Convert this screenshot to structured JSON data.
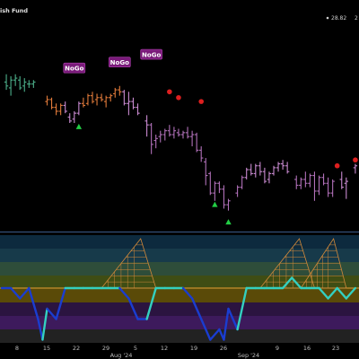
{
  "header": {
    "title": "ish Fund",
    "last_label": "28.82",
    "ellipsis": "2"
  },
  "chart_data": {
    "type": "candlestick",
    "x_tick_labels": [
      "8",
      "15",
      "22",
      "29",
      "5",
      "12",
      "19",
      "26",
      "9",
      "16",
      "23"
    ],
    "month_labels": [
      "Aug '24",
      "Sep '24"
    ],
    "upper_panel": {
      "bars": [
        {
          "d": 1,
          "o": 74,
          "h": 78,
          "l": 70,
          "c": 72,
          "color": "#4caf8a"
        },
        {
          "d": 2,
          "o": 71,
          "h": 77,
          "l": 67,
          "c": 75,
          "color": "#4caf8a"
        },
        {
          "d": 3,
          "o": 75,
          "h": 78,
          "l": 72,
          "c": 76,
          "color": "#4caf8a"
        },
        {
          "d": 4,
          "o": 75,
          "h": 77,
          "l": 70,
          "c": 71,
          "color": "#4caf8a"
        },
        {
          "d": 5,
          "o": 72,
          "h": 76,
          "l": 69,
          "c": 74,
          "color": "#4caf8a"
        },
        {
          "d": 6,
          "o": 73,
          "h": 75,
          "l": 71,
          "c": 73,
          "color": "#4caf8a"
        },
        {
          "d": 7,
          "o": 73,
          "h": 75,
          "l": 71,
          "c": 74,
          "color": "#4caf8a"
        },
        {
          "d": 10,
          "o": 64,
          "h": 67,
          "l": 62,
          "c": 65,
          "color": "#e07a3a"
        },
        {
          "d": 11,
          "o": 65,
          "h": 66,
          "l": 60,
          "c": 61,
          "color": "#e07a3a"
        },
        {
          "d": 12,
          "o": 61,
          "h": 63,
          "l": 57,
          "c": 59,
          "color": "#e07a3a"
        },
        {
          "d": 13,
          "o": 59,
          "h": 63,
          "l": 57,
          "c": 62,
          "color": "#e07a3a"
        },
        {
          "d": 14,
          "o": 62,
          "h": 64,
          "l": 58,
          "c": 59,
          "color": "#c88ad0"
        },
        {
          "d": 15,
          "o": 56,
          "h": 58,
          "l": 53,
          "c": 54,
          "color": "#c88ad0"
        },
        {
          "d": 16,
          "o": 55,
          "h": 59,
          "l": 53,
          "c": 58,
          "color": "#c88ad0"
        },
        {
          "d": 17,
          "o": 58,
          "h": 64,
          "l": 57,
          "c": 63,
          "color": "#c88ad0"
        },
        {
          "d": 18,
          "o": 63,
          "h": 66,
          "l": 61,
          "c": 62,
          "color": "#e07a3a"
        },
        {
          "d": 19,
          "o": 63,
          "h": 68,
          "l": 62,
          "c": 67,
          "color": "#e07a3a"
        },
        {
          "d": 20,
          "o": 67,
          "h": 69,
          "l": 63,
          "c": 64,
          "color": "#e07a3a"
        },
        {
          "d": 21,
          "o": 65,
          "h": 68,
          "l": 62,
          "c": 66,
          "color": "#e07a3a"
        },
        {
          "d": 22,
          "o": 66,
          "h": 68,
          "l": 64,
          "c": 65,
          "color": "#e07a3a"
        },
        {
          "d": 23,
          "o": 64,
          "h": 67,
          "l": 61,
          "c": 66,
          "color": "#e07a3a"
        },
        {
          "d": 24,
          "o": 66,
          "h": 68,
          "l": 64,
          "c": 67,
          "color": "#e07a3a"
        },
        {
          "d": 25,
          "o": 68,
          "h": 71,
          "l": 66,
          "c": 70,
          "color": "#e07a3a"
        },
        {
          "d": 26,
          "o": 70,
          "h": 72,
          "l": 67,
          "c": 69,
          "color": "#e07a3a"
        },
        {
          "d": 27,
          "o": 69,
          "h": 70,
          "l": 62,
          "c": 63,
          "color": "#c88ad0"
        },
        {
          "d": 28,
          "o": 63,
          "h": 69,
          "l": 57,
          "c": 64,
          "color": "#c88ad0"
        },
        {
          "d": 29,
          "o": 64,
          "h": 66,
          "l": 60,
          "c": 61,
          "color": "#c88ad0"
        },
        {
          "d": 30,
          "o": 61,
          "h": 63,
          "l": 57,
          "c": 58,
          "color": "#c88ad0"
        },
        {
          "d": 32,
          "o": 54,
          "h": 57,
          "l": 46,
          "c": 52,
          "color": "#c88ad0"
        },
        {
          "d": 33,
          "o": 52,
          "h": 53,
          "l": 37,
          "c": 42,
          "color": "#b070b8"
        },
        {
          "d": 34,
          "o": 44,
          "h": 47,
          "l": 40,
          "c": 45,
          "color": "#b070b8"
        },
        {
          "d": 35,
          "o": 46,
          "h": 49,
          "l": 43,
          "c": 47,
          "color": "#b070b8"
        },
        {
          "d": 36,
          "o": 47,
          "h": 50,
          "l": 44,
          "c": 49,
          "color": "#b070b8"
        },
        {
          "d": 37,
          "o": 49,
          "h": 52,
          "l": 46,
          "c": 47,
          "color": "#b070b8"
        },
        {
          "d": 38,
          "o": 47,
          "h": 51,
          "l": 45,
          "c": 49,
          "color": "#b070b8"
        },
        {
          "d": 39,
          "o": 48,
          "h": 50,
          "l": 46,
          "c": 47,
          "color": "#b070b8"
        },
        {
          "d": 40,
          "o": 47,
          "h": 49,
          "l": 45,
          "c": 48,
          "color": "#b070b8"
        },
        {
          "d": 41,
          "o": 48,
          "h": 51,
          "l": 45,
          "c": 46,
          "color": "#b070b8"
        },
        {
          "d": 42,
          "o": 46,
          "h": 49,
          "l": 41,
          "c": 47,
          "color": "#b070b8"
        },
        {
          "d": 43,
          "o": 47,
          "h": 48,
          "l": 38,
          "c": 39,
          "color": "#b070b8"
        },
        {
          "d": 44,
          "o": 39,
          "h": 41,
          "l": 33,
          "c": 35,
          "color": "#b070b8"
        },
        {
          "d": 45,
          "o": 33,
          "h": 35,
          "l": 21,
          "c": 26,
          "color": "#b070b8"
        },
        {
          "d": 46,
          "o": 27,
          "h": 28,
          "l": 16,
          "c": 17,
          "color": "#b070b8"
        },
        {
          "d": 47,
          "o": 17,
          "h": 23,
          "l": 13,
          "c": 22,
          "color": "#b070b8"
        },
        {
          "d": 48,
          "o": 22,
          "h": 23,
          "l": 17,
          "c": 19,
          "color": "#b070b8"
        },
        {
          "d": 49,
          "o": 19,
          "h": 21,
          "l": 9,
          "c": 11,
          "color": "#b070b8"
        },
        {
          "d": 50,
          "o": 11,
          "h": 14,
          "l": 8,
          "c": 13,
          "color": "#b070b8"
        },
        {
          "d": 52,
          "o": 17,
          "h": 21,
          "l": 15,
          "c": 20,
          "color": "#b070b8"
        },
        {
          "d": 53,
          "o": 20,
          "h": 26,
          "l": 19,
          "c": 25,
          "color": "#b070b8"
        },
        {
          "d": 54,
          "o": 25,
          "h": 30,
          "l": 24,
          "c": 29,
          "color": "#c88ad0"
        },
        {
          "d": 55,
          "o": 29,
          "h": 32,
          "l": 26,
          "c": 27,
          "color": "#c88ad0"
        },
        {
          "d": 56,
          "o": 27,
          "h": 32,
          "l": 25,
          "c": 31,
          "color": "#c88ad0"
        },
        {
          "d": 57,
          "o": 31,
          "h": 33,
          "l": 26,
          "c": 28,
          "color": "#c88ad0"
        },
        {
          "d": 58,
          "o": 28,
          "h": 30,
          "l": 22,
          "c": 23,
          "color": "#c88ad0"
        },
        {
          "d": 59,
          "o": 24,
          "h": 28,
          "l": 22,
          "c": 27,
          "color": "#c88ad0"
        },
        {
          "d": 60,
          "o": 27,
          "h": 31,
          "l": 26,
          "c": 30,
          "color": "#c88ad0"
        },
        {
          "d": 61,
          "o": 30,
          "h": 33,
          "l": 28,
          "c": 32,
          "color": "#c88ad0"
        },
        {
          "d": 62,
          "o": 32,
          "h": 34,
          "l": 29,
          "c": 31,
          "color": "#c88ad0"
        },
        {
          "d": 63,
          "o": 31,
          "h": 33,
          "l": 27,
          "c": 28,
          "color": "#c88ad0"
        },
        {
          "d": 65,
          "o": 24,
          "h": 26,
          "l": 19,
          "c": 21,
          "color": "#b070b8"
        },
        {
          "d": 66,
          "o": 21,
          "h": 25,
          "l": 19,
          "c": 24,
          "color": "#b070b8"
        },
        {
          "d": 67,
          "o": 24,
          "h": 28,
          "l": 20,
          "c": 22,
          "color": "#b070b8"
        },
        {
          "d": 68,
          "o": 22,
          "h": 27,
          "l": 20,
          "c": 26,
          "color": "#b070b8"
        },
        {
          "d": 69,
          "o": 26,
          "h": 28,
          "l": 13,
          "c": 18,
          "color": "#b070b8"
        },
        {
          "d": 70,
          "o": 18,
          "h": 26,
          "l": 16,
          "c": 25,
          "color": "#b070b8"
        },
        {
          "d": 71,
          "o": 25,
          "h": 27,
          "l": 21,
          "c": 22,
          "color": "#b070b8"
        },
        {
          "d": 72,
          "o": 22,
          "h": 25,
          "l": 15,
          "c": 17,
          "color": "#b070b8"
        },
        {
          "d": 73,
          "o": 17,
          "h": 24,
          "l": 15,
          "c": 23,
          "color": "#b070b8"
        },
        {
          "d": 75,
          "o": 24,
          "h": 28,
          "l": 19,
          "c": 20,
          "color": "#c88ad0"
        },
        {
          "d": 76,
          "o": 22,
          "h": 25,
          "l": 14,
          "c": 23,
          "color": "#c88ad0"
        },
        {
          "d": 78,
          "o": 30,
          "h": 32,
          "l": 27,
          "c": 31,
          "color": "#c88ad0"
        }
      ],
      "nogo_labels": [
        {
          "d": 16,
          "v": 81,
          "text": "NoGo"
        },
        {
          "d": 26,
          "v": 84,
          "text": "NoGo"
        },
        {
          "d": 33,
          "v": 88,
          "text": "NoGo"
        }
      ],
      "green_triangles": [
        {
          "d": 17,
          "v": 51
        },
        {
          "d": 47,
          "v": 11
        },
        {
          "d": 50,
          "v": 2
        }
      ],
      "red_dots": [
        {
          "d": 37,
          "v": 69
        },
        {
          "d": 39,
          "v": 66
        },
        {
          "d": 44,
          "v": 64
        },
        {
          "d": 74,
          "v": 31
        },
        {
          "d": 78,
          "v": 34
        }
      ]
    },
    "lower_panel": {
      "bands": [
        "#0d2a3e",
        "#173a4a",
        "#2e4d3a",
        "#3f4d14",
        "#5a4a08",
        "#2b1440",
        "#3d1a5c",
        "#222222"
      ],
      "zero_line_color": "#f0a030",
      "oscillator": {
        "x": [
          0,
          2,
          4,
          6,
          8,
          9,
          10,
          12,
          14,
          16,
          18,
          20,
          22,
          24,
          26,
          28,
          30,
          32,
          34,
          36,
          38,
          40,
          42,
          44,
          46,
          48,
          49,
          50,
          52,
          54,
          56,
          58,
          60,
          62,
          64,
          66,
          68,
          70,
          72,
          74,
          76,
          78
        ],
        "y": [
          0,
          0,
          -1,
          0,
          -3,
          -5,
          -2,
          -3,
          0,
          0,
          0,
          0,
          0,
          0,
          0,
          -1,
          -3,
          -3,
          0,
          0,
          0,
          0,
          -1,
          -3,
          -5,
          -4,
          -5,
          -2,
          -4,
          0,
          0,
          0,
          0,
          0,
          1,
          0,
          0,
          0,
          -1,
          0,
          -1,
          0
        ],
        "colors": [
          "#1a3dd0",
          "#1a3dd0",
          "#1a3dd0",
          "#1a3dd0",
          "#1a3dd0",
          "#1a3dd0",
          "#33d0c0",
          "#1a3dd0",
          "#1a3dd0",
          "#33d0c0",
          "#33d0c0",
          "#33d0c0",
          "#33d0c0",
          "#33d0c0",
          "#33d0c0",
          "#1a3dd0",
          "#1a3dd0",
          "#1a3dd0",
          "#33d0c0",
          "#33d0c0",
          "#33d0c0",
          "#33d0c0",
          "#1a3dd0",
          "#1a3dd0",
          "#1a3dd0",
          "#1a3dd0",
          "#1a3dd0",
          "#1a3dd0",
          "#1a3dd0",
          "#33d0c0",
          "#33d0c0",
          "#33d0c0",
          "#33d0c0",
          "#33d0c0",
          "#33d0c0",
          "#33d0c0",
          "#33d0c0",
          "#33d0c0",
          "#33d0c0",
          "#33d0c0",
          "#33d0c0",
          "#33d0c0"
        ]
      },
      "fans": [
        {
          "d0": 22,
          "d1": 34,
          "color": "#d0883a"
        },
        {
          "d0": 57,
          "d1": 69,
          "color": "#d0883a"
        },
        {
          "d0": 66,
          "d1": 76,
          "color": "#d0883a"
        }
      ]
    }
  }
}
